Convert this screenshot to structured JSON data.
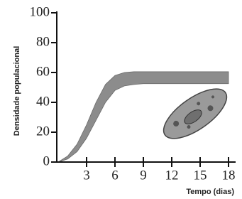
{
  "chart_data": {
    "type": "band",
    "x": [
      0,
      1,
      2,
      3,
      4,
      5,
      6,
      7,
      8,
      9,
      10,
      11,
      12,
      13,
      14,
      15,
      16,
      17,
      18
    ],
    "series": [
      {
        "values": [
          0,
          4,
          12,
          25,
          40,
          52,
          58,
          60,
          60.5,
          60.5,
          60.5,
          60.5,
          60.5,
          60.5,
          60.5,
          60.5,
          60.5,
          60.5,
          60.5
        ]
      },
      {
        "values": [
          0,
          2,
          7,
          16,
          28,
          40,
          48,
          51,
          52,
          52.5,
          52.5,
          52.5,
          52.5,
          52.5,
          52.5,
          52.5,
          52.5,
          52.5,
          52.5
        ]
      }
    ],
    "color": "#8c8c8c",
    "xlim": [
      0,
      18
    ],
    "xticks": [
      3,
      6,
      9,
      12,
      15,
      18
    ],
    "ylim": [
      0,
      100
    ],
    "yticks": [
      0,
      20,
      40,
      60,
      80,
      100
    ],
    "xlabel": "Tempo (dias)",
    "ylabel": "Densidade populacional"
  }
}
